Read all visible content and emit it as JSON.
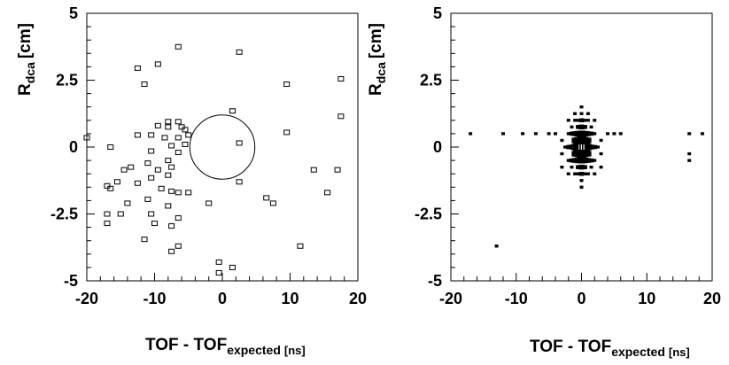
{
  "chart_data": [
    {
      "type": "scatter",
      "xlim": [
        -20,
        20
      ],
      "ylim": [
        -5,
        5
      ],
      "xticks": [
        "-20",
        "-10",
        "0",
        "10",
        "20"
      ],
      "yticks": [
        "5",
        "2.5",
        "0",
        "-2.5",
        "-5"
      ],
      "xlabel": {
        "main": "TOF - TOF",
        "sub": "expected",
        "unit": "[ns]"
      },
      "ylabel": {
        "main": "R",
        "sub": "dca",
        "unit": "[cm]"
      },
      "grid": false,
      "points": [
        [
          -6.5,
          3.75
        ],
        [
          -12.5,
          2.95
        ],
        [
          -9.5,
          3.1
        ],
        [
          2.5,
          3.55
        ],
        [
          -11.5,
          2.35
        ],
        [
          17.5,
          2.55
        ],
        [
          9.5,
          2.35
        ],
        [
          1.5,
          1.35
        ],
        [
          17.5,
          1.15
        ],
        [
          -8,
          0.95
        ],
        [
          -6.5,
          0.95
        ],
        [
          -9.5,
          0.8
        ],
        [
          -6,
          0.75
        ],
        [
          -8,
          0.75
        ],
        [
          -5.5,
          0.65
        ],
        [
          -5,
          0.45
        ],
        [
          -8.5,
          0.35
        ],
        [
          -6.5,
          0.35
        ],
        [
          -12.5,
          0.45
        ],
        [
          -10.5,
          0.45
        ],
        [
          9.5,
          0.55
        ],
        [
          -20,
          0.35
        ],
        [
          -16.5,
          0
        ],
        [
          -7.5,
          0.05
        ],
        [
          -5.5,
          0.1
        ],
        [
          -6.5,
          -0.2
        ],
        [
          -10.5,
          -0.15
        ],
        [
          2.5,
          0.15
        ],
        [
          -11,
          -0.6
        ],
        [
          -14.5,
          -0.85
        ],
        [
          -8,
          -0.5
        ],
        [
          -7.5,
          -0.75
        ],
        [
          -9.5,
          -0.85
        ],
        [
          -13.5,
          -0.75
        ],
        [
          -8,
          -1.05
        ],
        [
          -10.5,
          -1.15
        ],
        [
          -15.5,
          -1.3
        ],
        [
          -12.5,
          -1.35
        ],
        [
          -17,
          -1.45
        ],
        [
          -16.5,
          -1.55
        ],
        [
          -9,
          -1.55
        ],
        [
          -7.5,
          -1.65
        ],
        [
          -11,
          -1.95
        ],
        [
          -6.5,
          -1.7
        ],
        [
          -5,
          -1.7
        ],
        [
          2.5,
          -1.3
        ],
        [
          13.5,
          -0.85
        ],
        [
          17,
          -0.85
        ],
        [
          15.5,
          -1.7
        ],
        [
          6.5,
          -1.9
        ],
        [
          7.5,
          -2.1
        ],
        [
          -2,
          -2.1
        ],
        [
          -14,
          -2.1
        ],
        [
          -8,
          -2.2
        ],
        [
          -10.5,
          -2.5
        ],
        [
          -17,
          -2.5
        ],
        [
          -15,
          -2.5
        ],
        [
          -6.5,
          -2.65
        ],
        [
          -17,
          -2.85
        ],
        [
          -10,
          -2.85
        ],
        [
          -7.5,
          -2.95
        ],
        [
          -11.5,
          -3.45
        ],
        [
          -6.5,
          -3.7
        ],
        [
          -7.5,
          -3.9
        ],
        [
          11.5,
          -3.7
        ],
        [
          -0.5,
          -4.3
        ],
        [
          1.5,
          -4.5
        ],
        [
          -0.5,
          -4.7
        ]
      ],
      "ellipse": {
        "cx": 0,
        "cy": 0,
        "rx": 4.8,
        "ry": 1.2
      }
    },
    {
      "type": "heatmap",
      "xlim": [
        -20,
        20
      ],
      "ylim": [
        -5,
        5
      ],
      "xticks": [
        "-20",
        "-10",
        "0",
        "10",
        "20"
      ],
      "yticks": [
        "5",
        "2.5",
        "0",
        "-2.5",
        "-5"
      ],
      "xlabel": {
        "main": "TOF - TOF",
        "sub": "expected",
        "unit": "[ns]"
      },
      "ylabel": {
        "main": "R",
        "sub": "dca",
        "unit": "[cm]"
      },
      "grid": false,
      "bin_width": [
        1,
        0.25
      ],
      "cells": [
        [
          0,
          0,
          10
        ],
        [
          0.5,
          0,
          9
        ],
        [
          -0.5,
          0,
          8
        ],
        [
          0,
          0.25,
          7
        ],
        [
          0,
          -0.25,
          7
        ],
        [
          0.5,
          0.25,
          6
        ],
        [
          -0.5,
          0.25,
          6
        ],
        [
          0.5,
          -0.25,
          6
        ],
        [
          -0.5,
          -0.25,
          6
        ],
        [
          1,
          0,
          5
        ],
        [
          -1,
          0,
          5
        ],
        [
          0,
          0.5,
          5
        ],
        [
          0,
          -0.5,
          5
        ],
        [
          1,
          0.25,
          4
        ],
        [
          -1,
          0.25,
          4
        ],
        [
          1,
          -0.25,
          4
        ],
        [
          -1,
          -0.25,
          4
        ],
        [
          0.5,
          0.5,
          4
        ],
        [
          -0.5,
          0.5,
          4
        ],
        [
          0.5,
          -0.5,
          4
        ],
        [
          -0.5,
          -0.5,
          4
        ],
        [
          1.5,
          0,
          3
        ],
        [
          -1.5,
          0,
          3
        ],
        [
          0,
          0.75,
          3
        ],
        [
          0,
          -0.75,
          3
        ],
        [
          1,
          0.5,
          3
        ],
        [
          -1,
          0.5,
          3
        ],
        [
          1,
          -0.5,
          3
        ],
        [
          -1,
          -0.5,
          3
        ],
        [
          2,
          0,
          2
        ],
        [
          -2,
          0,
          2
        ],
        [
          1.5,
          0.5,
          2
        ],
        [
          -1.5,
          0.5,
          2
        ],
        [
          1.5,
          -0.5,
          2
        ],
        [
          -1.5,
          -0.5,
          2
        ],
        [
          0.5,
          0.75,
          2
        ],
        [
          -0.5,
          0.75,
          2
        ],
        [
          0.5,
          -0.75,
          2
        ],
        [
          -0.5,
          -0.75,
          2
        ],
        [
          0,
          1,
          2
        ],
        [
          0,
          -1,
          2
        ],
        [
          1,
          1,
          1
        ],
        [
          -1,
          1,
          1
        ],
        [
          1,
          -1,
          1
        ],
        [
          -1,
          -1,
          1
        ],
        [
          2.5,
          0,
          1
        ],
        [
          -2.5,
          0,
          1
        ],
        [
          3,
          0.25,
          1
        ],
        [
          -3,
          0.25,
          1
        ],
        [
          3,
          -0.25,
          1
        ],
        [
          -3,
          -0.25,
          1
        ],
        [
          4,
          0.5,
          1
        ],
        [
          -4,
          0.5,
          1
        ],
        [
          5,
          0.5,
          1
        ],
        [
          -5,
          0.5,
          1
        ],
        [
          6,
          0.5,
          1
        ],
        [
          -7,
          0.5,
          1
        ],
        [
          -9,
          0.5,
          1
        ],
        [
          -12,
          0.5,
          1
        ],
        [
          -17,
          0.5,
          1
        ],
        [
          16.5,
          0.5,
          1
        ],
        [
          18.5,
          0.5,
          1
        ],
        [
          16.5,
          -0.25,
          1
        ],
        [
          16.5,
          -0.5,
          1
        ],
        [
          0,
          1.5,
          1
        ],
        [
          0,
          1.25,
          1
        ],
        [
          0,
          -1.25,
          1
        ],
        [
          0,
          -1.5,
          1
        ],
        [
          1,
          1.25,
          1
        ],
        [
          -1,
          1.25,
          1
        ],
        [
          2,
          1,
          1
        ],
        [
          -2,
          1,
          1
        ],
        [
          2,
          -1,
          1
        ],
        [
          -2,
          -1,
          1
        ],
        [
          3,
          -0.75,
          1
        ],
        [
          -3,
          -0.75,
          1
        ],
        [
          -13,
          -3.7,
          1
        ],
        [
          0.5,
          1,
          1
        ],
        [
          -0.5,
          1,
          1
        ],
        [
          0.5,
          -1,
          1
        ],
        [
          -0.5,
          -1,
          1
        ],
        [
          2,
          0.5,
          1
        ],
        [
          -2,
          0.5,
          1
        ],
        [
          2,
          -0.5,
          1
        ],
        [
          -2,
          -0.5,
          1
        ],
        [
          1.5,
          0.75,
          1
        ],
        [
          -1.5,
          0.75,
          1
        ],
        [
          1.5,
          -0.75,
          1
        ],
        [
          -1.5,
          -0.75,
          1
        ]
      ]
    }
  ]
}
